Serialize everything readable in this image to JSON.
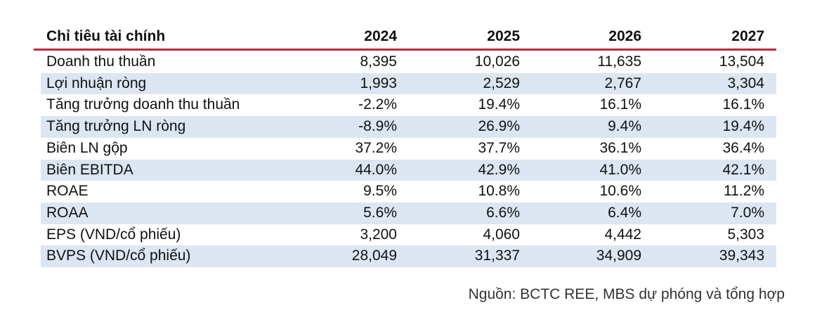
{
  "table": {
    "header": [
      "Chỉ tiêu tài chính",
      "2024",
      "2025",
      "2026",
      "2027"
    ],
    "rows": [
      [
        "Doanh thu thuần",
        "8,395",
        "10,026",
        "11,635",
        "13,504"
      ],
      [
        "Lợi nhuận ròng",
        "1,993",
        "2,529",
        "2,767",
        "3,304"
      ],
      [
        "Tăng trưởng doanh thu thuần",
        "-2.2%",
        "19.4%",
        "16.1%",
        "16.1%"
      ],
      [
        "Tăng trưởng LN ròng",
        "-8.9%",
        "26.9%",
        "9.4%",
        "19.4%"
      ],
      [
        "Biên LN gộp",
        "37.2%",
        "37.7%",
        "36.1%",
        "36.4%"
      ],
      [
        "Biên EBITDA",
        "44.0%",
        "42.9%",
        "41.0%",
        "42.1%"
      ],
      [
        "ROAE",
        "9.5%",
        "10.8%",
        "10.6%",
        "11.2%"
      ],
      [
        "ROAA",
        "5.6%",
        "6.6%",
        "6.4%",
        "7.0%"
      ],
      [
        "EPS (VND/cổ phiếu)",
        "3,200",
        "4,060",
        "4,442",
        "5,303"
      ],
      [
        "BVPS (VND/cổ phiếu)",
        "28,049",
        "31,337",
        "34,909",
        "39,343"
      ]
    ]
  },
  "source": "Nguồn: BCTC REE, MBS dự phóng và tổng hợp"
}
